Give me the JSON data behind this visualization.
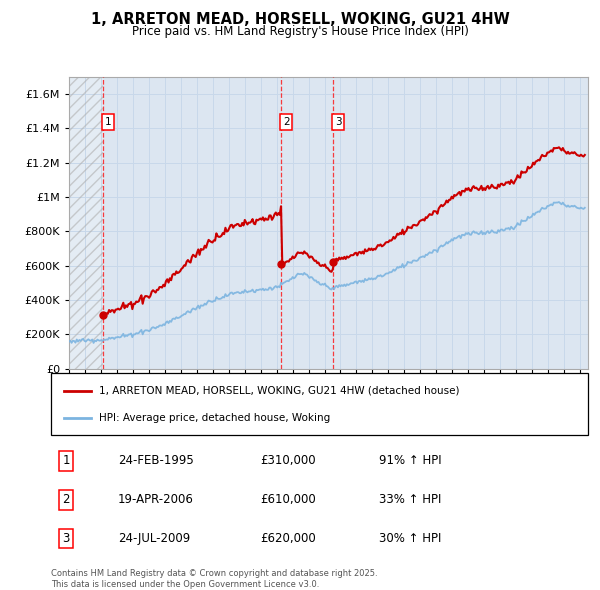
{
  "title": "1, ARRETON MEAD, HORSELL, WOKING, GU21 4HW",
  "subtitle": "Price paid vs. HM Land Registry's House Price Index (HPI)",
  "xlim_start": 1993.0,
  "xlim_end": 2025.5,
  "ylim": [
    0,
    1700000
  ],
  "yticks": [
    0,
    200000,
    400000,
    600000,
    800000,
    1000000,
    1200000,
    1400000,
    1600000
  ],
  "hpi_color": "#7cb4e0",
  "price_color": "#cc0000",
  "purchase_dates": [
    1995.13,
    2006.3,
    2009.56
  ],
  "purchase_prices": [
    310000,
    610000,
    620000
  ],
  "purchase_labels": [
    "1",
    "2",
    "3"
  ],
  "legend_price_label": "1, ARRETON MEAD, HORSELL, WOKING, GU21 4HW (detached house)",
  "legend_hpi_label": "HPI: Average price, detached house, Woking",
  "table_rows": [
    [
      "1",
      "24-FEB-1995",
      "£310,000",
      "91% ↑ HPI"
    ],
    [
      "2",
      "19-APR-2006",
      "£610,000",
      "33% ↑ HPI"
    ],
    [
      "3",
      "24-JUL-2009",
      "£620,000",
      "30% ↑ HPI"
    ]
  ],
  "footer": "Contains HM Land Registry data © Crown copyright and database right 2025.\nThis data is licensed under the Open Government Licence v3.0.",
  "grid_color": "#c8d8ea",
  "background_color": "#dce6f1"
}
